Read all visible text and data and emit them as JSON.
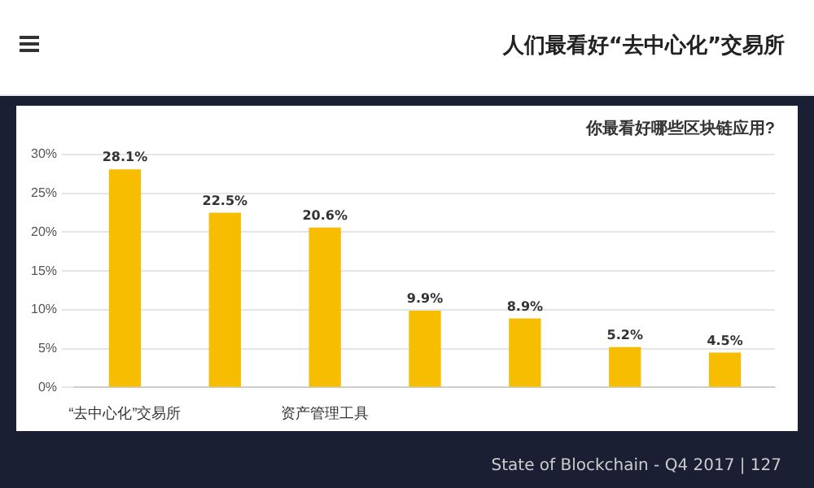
{
  "chart_data": {
    "type": "bar",
    "title": "你最看好哪些区块链应用?",
    "categories": [
      "“去中心化”交易所",
      null,
      "资产管理工具",
      null,
      null,
      null,
      null
    ],
    "values": [
      28.1,
      22.5,
      20.6,
      9.9,
      8.9,
      5.2,
      4.5
    ],
    "value_labels": [
      "28.1%",
      "22.5%",
      "20.6%",
      "9.9%",
      "8.9%",
      "5.2%",
      "4.5%"
    ],
    "color": "#f7bd00",
    "ylim": [
      0,
      30
    ],
    "yticks": [
      {
        "value": 0,
        "label": "0%"
      },
      {
        "value": 5,
        "label": "5%"
      },
      {
        "value": 10,
        "label": "10%"
      },
      {
        "value": 15,
        "label": "15%"
      },
      {
        "value": 20,
        "label": "20%"
      },
      {
        "value": 25,
        "label": "25%"
      },
      {
        "value": 30,
        "label": "30%"
      }
    ],
    "grid": "y",
    "legend": false,
    "annotations": [
      "人们最看好“去中心化”交易所",
      "State of Blockchain - Q4 2017 | 127"
    ]
  }
}
